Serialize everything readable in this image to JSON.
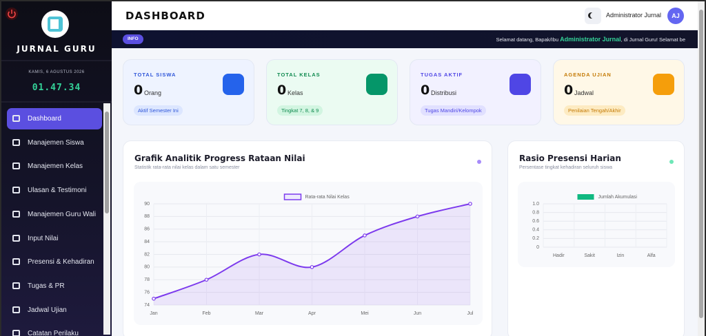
{
  "sidebar": {
    "brand": "JURNAL GURU",
    "date": "KAMIS, 6 AGUSTUS 2026",
    "time": "01.47.34",
    "menu": [
      "Dashboard",
      "Manajemen Siswa",
      "Manajemen Kelas",
      "Ulasan & Testimoni",
      "Manajemen Guru Wali",
      "Input Nilai",
      "Presensi & Kehadiran",
      "Tugas & PR",
      "Jadwal Ujian",
      "Catatan Perilaku"
    ]
  },
  "header": {
    "title": "DASHBOARD",
    "user": "Administrator Jurnal",
    "avatar": "AJ"
  },
  "info": {
    "badge": "INFO",
    "text_before": "Selamat datang, Bapak/Ibu",
    "highlight": "Administrator Jurnal",
    "text_after": ", di Jurnal Guru! Selamat be"
  },
  "cards": [
    {
      "label": "TOTAL SISWA",
      "value": 0,
      "unit": "Orang",
      "badge": "Aktif Semester Ini"
    },
    {
      "label": "TOTAL KELAS",
      "value": 0,
      "unit": "Kelas",
      "badge": "Tingkat 7, 8, & 9"
    },
    {
      "label": "TUGAS AKTIF",
      "value": 0,
      "unit": "Distribusi",
      "badge": "Tugas Mandiri/Kelompok"
    },
    {
      "label": "AGENDA UJIAN",
      "value": 0,
      "unit": "Jadwal",
      "badge": "Penilaian Tengah/Akhir"
    }
  ],
  "chart_data": [
    {
      "type": "line",
      "title": "Grafik Analitik Progress Rataan Nilai",
      "subtitle": "Statistik rata-rata nilai kelas dalam satu semester",
      "categories": [
        "Jan",
        "Feb",
        "Mar",
        "Apr",
        "Mei",
        "Jun",
        "Jul"
      ],
      "series": [
        {
          "name": "Rata-rata Nilai Kelas",
          "color": "#7c3aed",
          "values": [
            75,
            78,
            82,
            80,
            85,
            88,
            90
          ]
        }
      ],
      "ylim": [
        74,
        90
      ],
      "yticks": [
        74,
        76,
        78,
        80,
        82,
        84,
        86,
        88,
        90
      ],
      "grid": true
    },
    {
      "type": "bar",
      "title": "Rasio Presensi Harian",
      "subtitle": "Persentase tingkat kehadiran seluruh siswa",
      "categories": [
        "Hadir",
        "Sakit",
        "Izin",
        "Alfa"
      ],
      "series": [
        {
          "name": "Jumlah Akumulasi",
          "color": "#10b981",
          "values": [
            0,
            0,
            0,
            0
          ]
        }
      ],
      "ylim": [
        0,
        1
      ],
      "yticks": [
        0,
        0.2,
        0.4,
        0.6,
        0.8,
        {
          "value": 1,
          "label": "1.0"
        }
      ],
      "grid": true
    }
  ]
}
